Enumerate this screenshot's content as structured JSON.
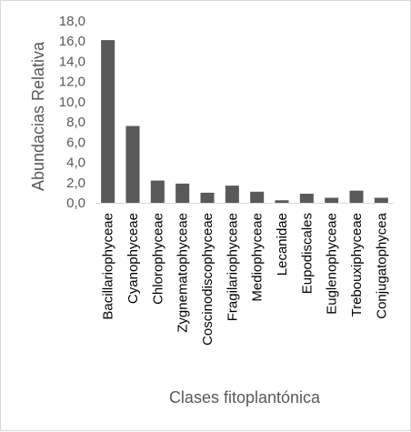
{
  "chart_data": {
    "type": "bar",
    "categories": [
      "Bacillariophyceae",
      "Cyanophyceae",
      "Chlorophyceae",
      "Zygnematophyceae",
      "Coscinodiscophyceae",
      "Fragilariophyceae",
      "Mediophyceae",
      "Lecanidae",
      "Eupodiscales",
      "Euglenophyceae",
      "Trebouxiphyceae",
      "Conjugatophycea"
    ],
    "values": [
      16.1,
      7.6,
      2.2,
      1.9,
      1.0,
      1.7,
      1.1,
      0.25,
      0.9,
      0.5,
      1.2,
      0.5
    ],
    "xlabel": "Clases fitoplantónica",
    "ylabel": "Abundacias Relativa",
    "ylim": [
      0,
      18
    ],
    "yticks": [
      "0,0",
      "2,0",
      "4,0",
      "6,0",
      "8,0",
      "10,0",
      "12,0",
      "14,0",
      "16,0",
      "18,0"
    ],
    "bar_color": "#595959",
    "grid": false,
    "legend": "none"
  }
}
